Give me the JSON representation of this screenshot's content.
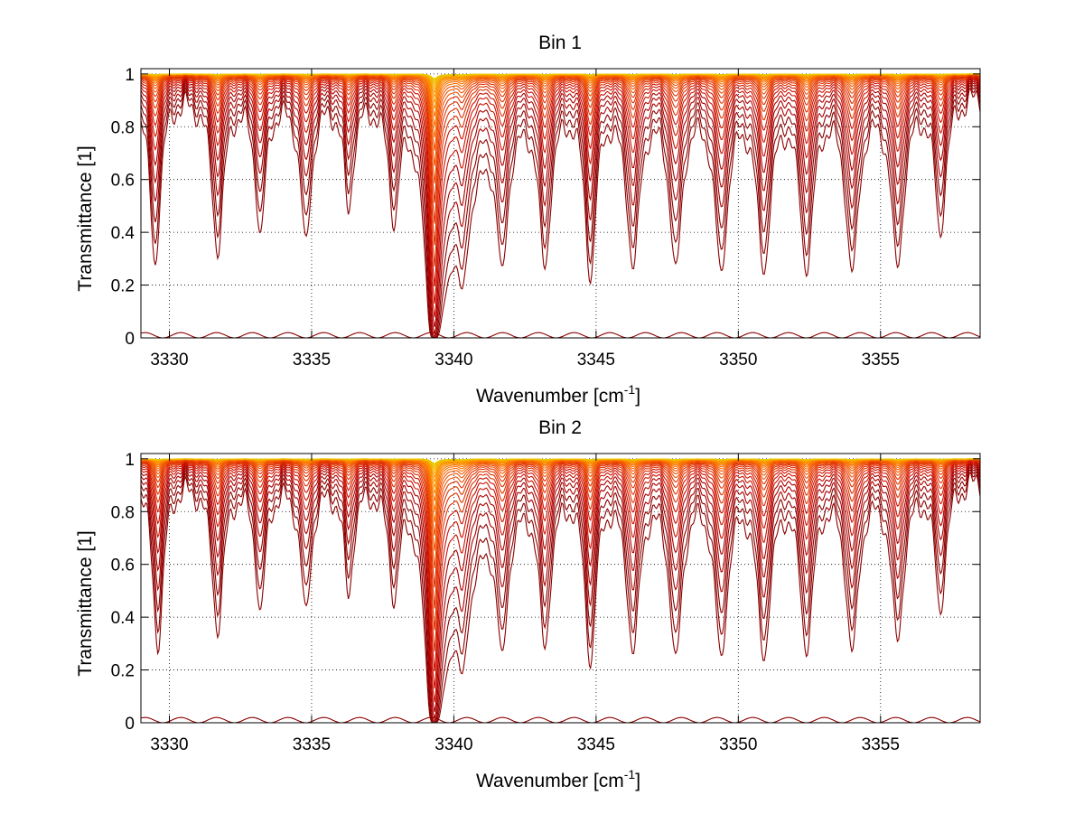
{
  "chart_data": [
    {
      "type": "line",
      "title": "Bin 1",
      "xlabel": "Wavenumber [cm",
      "xlabel_superscript": "-1",
      "xlabel_suffix": "]",
      "ylabel": "Transmittance [1]",
      "xlim": [
        3329.0,
        3358.5
      ],
      "ylim": [
        0,
        1.02
      ],
      "xticks": [
        3330,
        3335,
        3340,
        3345,
        3350,
        3355
      ],
      "xtick_labels": [
        "3330",
        "3335",
        "3340",
        "3345",
        "3350",
        "3355"
      ],
      "yticks": [
        0,
        0.2,
        0.4,
        0.6,
        0.8,
        1
      ],
      "ytick_labels": [
        "0",
        "0.2",
        "0.4",
        "0.6",
        "0.8",
        "1"
      ],
      "grid": true,
      "grid_style": "dotted",
      "deep_line_center": 3339.3,
      "lines": [
        {
          "center": 3329.5,
          "depth": 0.85,
          "width": 0.16
        },
        {
          "center": 3331.7,
          "depth": 0.75,
          "width": 0.18
        },
        {
          "center": 3333.2,
          "depth": 0.6,
          "width": 0.17
        },
        {
          "center": 3334.8,
          "depth": 0.65,
          "width": 0.18
        },
        {
          "center": 3336.3,
          "depth": 0.45,
          "width": 0.16
        },
        {
          "center": 3337.9,
          "depth": 0.5,
          "width": 0.17
        },
        {
          "center": 3340.3,
          "depth": 0.7,
          "width": 0.17
        },
        {
          "center": 3341.7,
          "depth": 0.8,
          "width": 0.18
        },
        {
          "center": 3343.2,
          "depth": 0.85,
          "width": 0.18
        },
        {
          "center": 3344.8,
          "depth": 1.0,
          "width": 0.16
        },
        {
          "center": 3346.3,
          "depth": 0.85,
          "width": 0.2
        },
        {
          "center": 3347.8,
          "depth": 0.85,
          "width": 0.2
        },
        {
          "center": 3349.4,
          "depth": 0.9,
          "width": 0.2
        },
        {
          "center": 3350.9,
          "depth": 0.9,
          "width": 0.2
        },
        {
          "center": 3352.4,
          "depth": 0.9,
          "width": 0.2
        },
        {
          "center": 3354.0,
          "depth": 0.9,
          "width": 0.2
        },
        {
          "center": 3355.6,
          "depth": 0.85,
          "width": 0.2
        },
        {
          "center": 3357.1,
          "depth": 0.6,
          "width": 0.18
        }
      ],
      "curve_count": 30,
      "line_colors": [
        "#8b0000",
        "#aa0000",
        "#cc1100",
        "#e03000",
        "#f05000",
        "#f87000",
        "#fb9000",
        "#f7b000",
        "#e8c800"
      ]
    },
    {
      "type": "line",
      "title": "Bin 2",
      "xlabel": "Wavenumber [cm",
      "xlabel_superscript": "-1",
      "xlabel_suffix": "]",
      "ylabel": "Transmittance [1]",
      "xlim": [
        3329.0,
        3358.5
      ],
      "ylim": [
        0,
        1.02
      ],
      "xticks": [
        3330,
        3335,
        3340,
        3345,
        3350,
        3355
      ],
      "xtick_labels": [
        "3330",
        "3335",
        "3340",
        "3345",
        "3350",
        "3355"
      ],
      "yticks": [
        0,
        0.2,
        0.4,
        0.6,
        0.8,
        1
      ],
      "ytick_labels": [
        "0",
        "0.2",
        "0.4",
        "0.6",
        "0.8",
        "1"
      ],
      "grid": true,
      "grid_style": "dotted",
      "deep_line_center": 3339.3,
      "lines": [
        {
          "center": 3329.6,
          "depth": 0.85,
          "width": 0.16
        },
        {
          "center": 3331.7,
          "depth": 0.7,
          "width": 0.18
        },
        {
          "center": 3333.2,
          "depth": 0.55,
          "width": 0.17
        },
        {
          "center": 3334.8,
          "depth": 0.55,
          "width": 0.18
        },
        {
          "center": 3336.3,
          "depth": 0.45,
          "width": 0.16
        },
        {
          "center": 3337.9,
          "depth": 0.45,
          "width": 0.17
        },
        {
          "center": 3340.3,
          "depth": 0.7,
          "width": 0.17
        },
        {
          "center": 3341.7,
          "depth": 0.8,
          "width": 0.18
        },
        {
          "center": 3343.2,
          "depth": 0.8,
          "width": 0.18
        },
        {
          "center": 3344.8,
          "depth": 1.0,
          "width": 0.16
        },
        {
          "center": 3346.3,
          "depth": 0.85,
          "width": 0.2
        },
        {
          "center": 3347.8,
          "depth": 0.9,
          "width": 0.2
        },
        {
          "center": 3349.4,
          "depth": 0.9,
          "width": 0.2
        },
        {
          "center": 3350.9,
          "depth": 0.92,
          "width": 0.2
        },
        {
          "center": 3352.4,
          "depth": 0.85,
          "width": 0.2
        },
        {
          "center": 3354.0,
          "depth": 0.85,
          "width": 0.2
        },
        {
          "center": 3355.6,
          "depth": 0.75,
          "width": 0.2
        },
        {
          "center": 3357.1,
          "depth": 0.55,
          "width": 0.18
        }
      ],
      "curve_count": 30,
      "line_colors": [
        "#8b0000",
        "#aa0000",
        "#cc1100",
        "#e03000",
        "#f05000",
        "#f87000",
        "#fb9000",
        "#f7b000",
        "#e8c800"
      ]
    }
  ]
}
